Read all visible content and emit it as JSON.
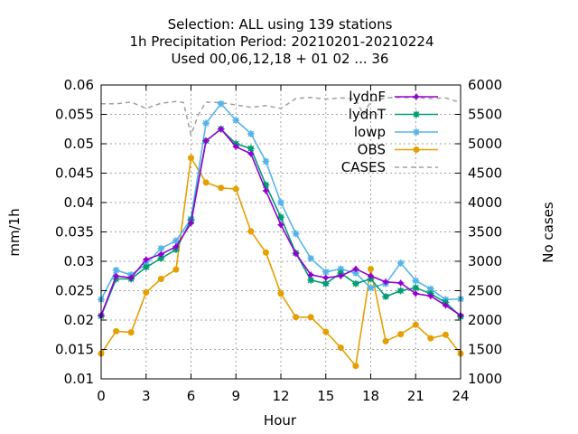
{
  "chart_data": {
    "type": "line",
    "title": [
      "Selection: ALL using   139 stations",
      "1h Precipitation   Period: 20210201-20210224",
      "Used  00,06,12,18 + 01 02 ... 36"
    ],
    "xlabel": "Hour",
    "ylabel": "mm/1h",
    "y2label": "No cases",
    "xlim": [
      0,
      24
    ],
    "ylim": [
      0.01,
      0.06
    ],
    "y2lim": [
      1000,
      6000
    ],
    "xticks": [
      "0",
      "3",
      "6",
      "9",
      "12",
      "15",
      "18",
      "21",
      "24"
    ],
    "xtick_values": [
      0,
      3,
      6,
      9,
      12,
      15,
      18,
      21,
      24
    ],
    "yticks": [
      "0.01",
      "0.015",
      "0.02",
      "0.025",
      "0.03",
      "0.035",
      "0.04",
      "0.045",
      "0.05",
      "0.055",
      "0.06"
    ],
    "ytick_values": [
      0.01,
      0.015,
      0.02,
      0.025,
      0.03,
      0.035,
      0.04,
      0.045,
      0.05,
      0.055,
      0.06
    ],
    "y2ticks": [
      "1000",
      "1500",
      "2000",
      "2500",
      "3000",
      "3500",
      "4000",
      "4500",
      "5000",
      "5500",
      "6000"
    ],
    "y2tick_values": [
      1000,
      1500,
      2000,
      2500,
      3000,
      3500,
      4000,
      4500,
      5000,
      5500,
      6000
    ],
    "grid": true,
    "legend_position": "top-right",
    "x": [
      0,
      1,
      2,
      3,
      4,
      5,
      6,
      7,
      8,
      9,
      10,
      11,
      12,
      13,
      14,
      15,
      16,
      17,
      18,
      19,
      20,
      21,
      22,
      23,
      24
    ],
    "series": [
      {
        "name": "lydnF",
        "color": "#9400d3",
        "marker": "plus",
        "values": [
          0.0208,
          0.0275,
          0.0272,
          0.0303,
          0.0312,
          0.0325,
          0.0365,
          0.0505,
          0.0525,
          0.0495,
          0.0483,
          0.042,
          0.0362,
          0.0313,
          0.0277,
          0.0272,
          0.0275,
          0.0287,
          0.0275,
          0.0265,
          0.0263,
          0.0245,
          0.0241,
          0.0225,
          0.0208
        ]
      },
      {
        "name": "lydnT",
        "color": "#009e73",
        "marker": "star",
        "values": [
          0.0207,
          0.027,
          0.027,
          0.029,
          0.0305,
          0.032,
          0.037,
          0.0505,
          0.0525,
          0.05,
          0.0492,
          0.043,
          0.0375,
          0.0314,
          0.0268,
          0.0262,
          0.028,
          0.0262,
          0.027,
          0.024,
          0.025,
          0.0255,
          0.0245,
          0.023,
          0.0206
        ]
      },
      {
        "name": "lowp",
        "color": "#56b4e9",
        "marker": "star",
        "values": [
          0.0235,
          0.0285,
          0.0277,
          0.0295,
          0.0322,
          0.0335,
          0.0372,
          0.0535,
          0.0568,
          0.054,
          0.0517,
          0.047,
          0.04,
          0.0347,
          0.0305,
          0.0282,
          0.0287,
          0.028,
          0.0255,
          0.0262,
          0.0297,
          0.0267,
          0.0253,
          0.0235,
          0.0236
        ]
      },
      {
        "name": "OBS",
        "color": "#e69f00",
        "marker": "circle",
        "values": [
          0.0143,
          0.0181,
          0.0179,
          0.0247,
          0.027,
          0.0286,
          0.0476,
          0.0434,
          0.0425,
          0.0423,
          0.0351,
          0.0315,
          0.0245,
          0.0205,
          0.0205,
          0.018,
          0.0153,
          0.0122,
          0.0287,
          0.0164,
          0.0176,
          0.0192,
          0.0169,
          0.0175,
          0.0143
        ]
      },
      {
        "name": "CASES",
        "color": "#a0a0a0",
        "marker": "none",
        "dashed": true,
        "axis": "y2",
        "x": [
          0,
          1,
          2,
          3,
          4,
          5,
          5.5,
          6,
          6.5,
          7,
          8,
          9,
          10,
          11,
          12,
          13,
          14,
          15,
          16,
          17,
          17.5,
          18,
          19,
          20,
          21,
          22,
          23,
          24
        ],
        "values": [
          5680,
          5680,
          5710,
          5600,
          5690,
          5720,
          5700,
          5150,
          5500,
          5710,
          5700,
          5660,
          5620,
          5650,
          5600,
          5770,
          5790,
          5760,
          5780,
          5760,
          5500,
          5720,
          5780,
          5790,
          5780,
          5770,
          5780,
          5700
        ]
      }
    ]
  }
}
